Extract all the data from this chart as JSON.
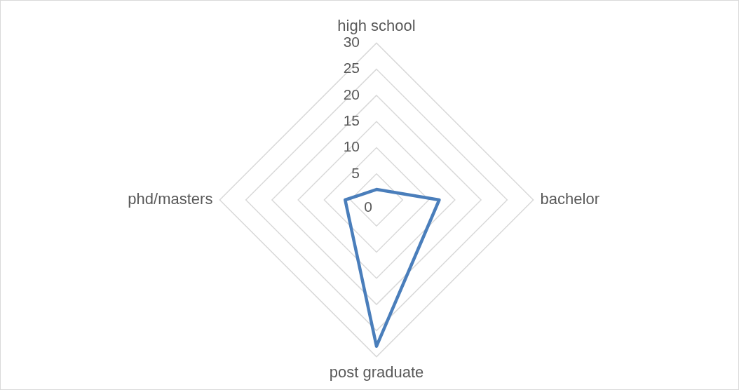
{
  "chart_data": {
    "type": "radar",
    "categories": [
      "high school",
      "bachelor",
      "post graduate",
      "phd/masters"
    ],
    "series": [
      {
        "color": "#4a7ebb",
        "values": [
          2,
          12,
          28,
          6
        ]
      }
    ],
    "ylim": [
      0,
      30
    ],
    "yticks": [
      0,
      5,
      10,
      15,
      20,
      25,
      30
    ],
    "grid": true,
    "marker": "none",
    "line_style": "solid"
  }
}
